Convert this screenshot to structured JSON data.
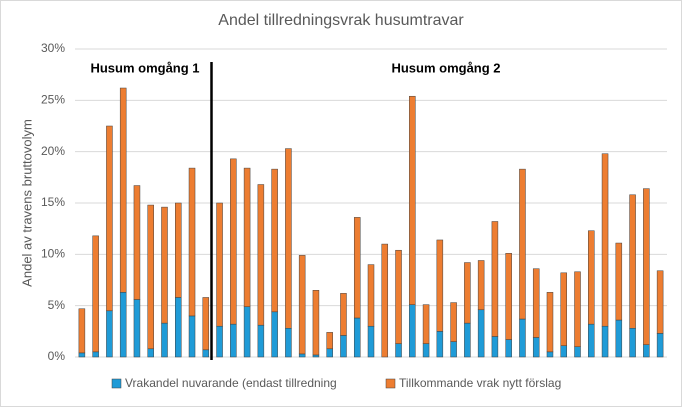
{
  "chart_data": {
    "type": "stacked_bar",
    "title": "Andel tillredningsvrak husumtravar",
    "y_label": "Andel av travens bruttovolym",
    "annotations": [
      "Husum omgång 1",
      "Husum omgång 2"
    ],
    "categories": [
      null,
      null,
      null,
      null,
      null,
      null,
      null,
      null,
      null,
      null,
      null,
      null,
      null,
      null,
      null,
      null,
      null,
      null,
      null,
      null,
      null,
      null,
      null,
      null,
      null,
      null,
      null,
      null,
      null,
      null,
      null,
      null,
      null,
      null,
      null,
      null,
      null,
      null,
      null,
      null,
      null,
      null,
      null
    ],
    "series": [
      {
        "name": "Vrakandel nuvarande (endast tillredning",
        "color": "#1f9bd7",
        "values": [
          0.4,
          0.5,
          4.5,
          6.3,
          5.6,
          0.8,
          3.3,
          5.8,
          4.0,
          0.7,
          3.0,
          3.2,
          4.9,
          3.1,
          4.4,
          2.8,
          0.3,
          0.2,
          0.8,
          2.1,
          3.8,
          3.0,
          0,
          1.3,
          5.1,
          1.3,
          2.5,
          1.5,
          3.3,
          4.6,
          2.0,
          1.7,
          3.7,
          1.9,
          0.5,
          1.1,
          1.0,
          3.2,
          3.0,
          3.6,
          2.8,
          1.2,
          2.3
        ]
      },
      {
        "name": "Tillkommande vrak nytt förslag",
        "color": "#ed7d31",
        "values": [
          4.3,
          11.3,
          18.0,
          19.9,
          11.1,
          14.0,
          11.3,
          9.2,
          14.4,
          5.1,
          12.0,
          16.1,
          13.5,
          13.7,
          13.9,
          17.5,
          9.6,
          6.3,
          1.6,
          4.1,
          9.8,
          6.0,
          11.0,
          9.1,
          20.3,
          3.8,
          8.9,
          3.8,
          5.9,
          4.8,
          11.2,
          8.4,
          14.6,
          6.7,
          5.8,
          7.1,
          7.3,
          9.1,
          16.8,
          7.5,
          13.0,
          15.2,
          6.1
        ]
      }
    ],
    "ylim": [
      0,
      30
    ],
    "yticks": [
      {
        "value": 0,
        "label": "0%"
      },
      {
        "value": 5,
        "label": "5%"
      },
      {
        "value": 10,
        "label": "10%"
      },
      {
        "value": 15,
        "label": "15%"
      },
      {
        "value": 20,
        "label": "20%"
      },
      {
        "value": 25,
        "label": "25%"
      },
      {
        "value": 30,
        "label": "30%"
      }
    ],
    "grid": true,
    "legend": "bottom"
  }
}
